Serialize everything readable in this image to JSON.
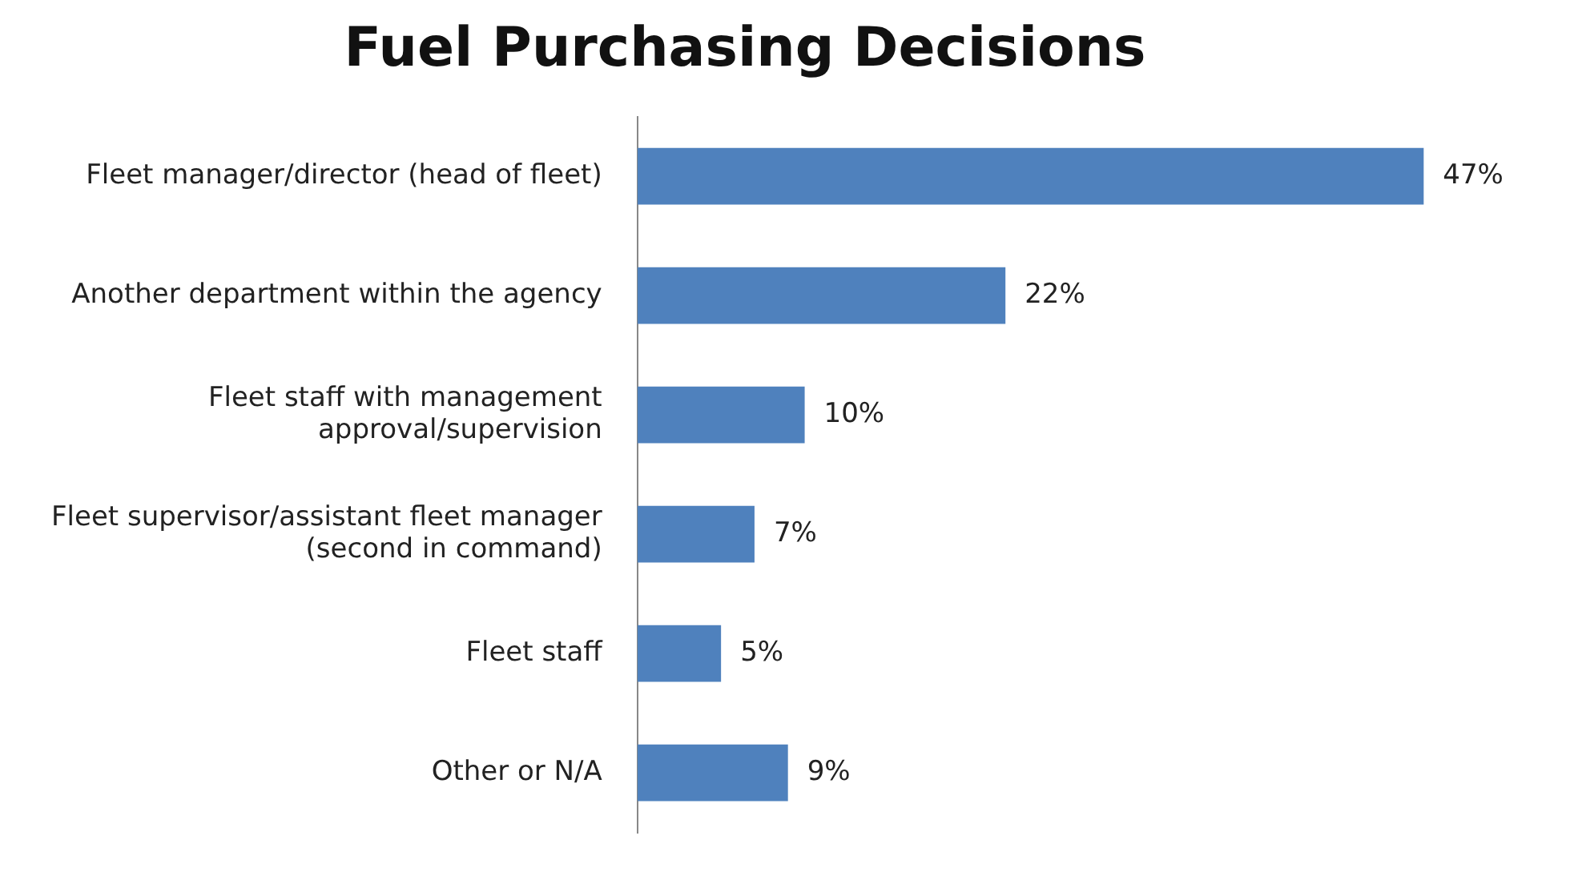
{
  "chart_data": {
    "type": "bar",
    "orientation": "horizontal",
    "title": "Fuel Purchasing Decisions",
    "categories": [
      "Fleet manager/director (head of fleet)",
      "Another department within the agency",
      "Fleet staff with management\napproval/supervision",
      "Fleet supervisor/assistant fleet manager\n(second in command)",
      "Fleet staff",
      "Other or N/A"
    ],
    "values": [
      47,
      22,
      10,
      7,
      5,
      9
    ],
    "value_labels": [
      "47%",
      "22%",
      "10%",
      "7%",
      "5%",
      "9%"
    ],
    "color": "#4f81bd"
  }
}
